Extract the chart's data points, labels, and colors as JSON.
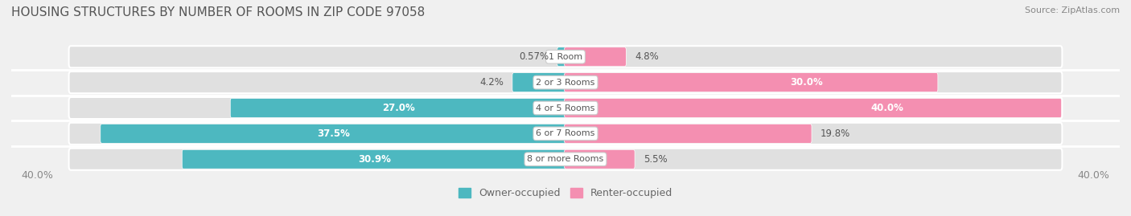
{
  "title": "HOUSING STRUCTURES BY NUMBER OF ROOMS IN ZIP CODE 97058",
  "source": "Source: ZipAtlas.com",
  "categories": [
    "1 Room",
    "2 or 3 Rooms",
    "4 or 5 Rooms",
    "6 or 7 Rooms",
    "8 or more Rooms"
  ],
  "owner_values": [
    0.57,
    4.2,
    27.0,
    37.5,
    30.9
  ],
  "renter_values": [
    4.8,
    30.0,
    40.0,
    19.8,
    5.5
  ],
  "owner_color": "#4db8c0",
  "renter_color": "#f48fb1",
  "axis_max": 40.0,
  "axis_label_left": "40.0%",
  "axis_label_right": "40.0%",
  "bg_color": "#f0f0f0",
  "bar_bg_color": "#e0e0e0",
  "title_fontsize": 11,
  "source_fontsize": 8,
  "label_fontsize": 8.5,
  "category_fontsize": 8,
  "legend_fontsize": 9
}
